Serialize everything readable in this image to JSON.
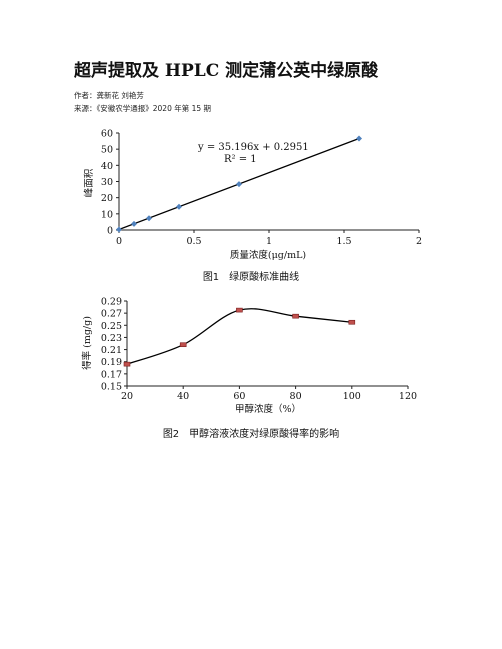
{
  "doc": {
    "title": "超声提取及 HPLC 测定蒲公英中绿原酸",
    "authors": "作者：龚新花 刘艳芳",
    "source": "来源：《安徽农学通报》2020 年第 15 期"
  },
  "figures": {
    "fig1": {
      "caption": "图1　绿原酸标准曲线",
      "equation": "y = 35.196x + 0.2951",
      "r2": "R² = 1",
      "xlabel": "质量浓度(μg/mL)",
      "ylabel": "峰面积"
    },
    "fig2": {
      "caption": "图2　甲醇溶液浓度对绿原酸得率的影响",
      "xlabel": "甲醇浓度（%）",
      "ylabel": "得率 (mg/g)"
    }
  },
  "chart_data": [
    {
      "type": "scatter",
      "title": "图1　绿原酸标准曲线",
      "xlabel": "质量浓度(μg/mL)",
      "ylabel": "峰面积",
      "xlim": [
        0,
        2
      ],
      "ylim": [
        0,
        60
      ],
      "xticks": [
        "0",
        "0.5",
        "1",
        "1.5",
        "2"
      ],
      "yticks": [
        "0",
        "10",
        "20",
        "30",
        "40",
        "50",
        "60"
      ],
      "trendline": {
        "slope": 35.196,
        "intercept": 0.2951,
        "label": "y = 35.196x + 0.2951",
        "r2": "R² = 1"
      },
      "x": [
        0,
        0.1,
        0.2,
        0.4,
        0.8,
        1.6
      ],
      "y": [
        0.3,
        3.8,
        7.3,
        14.4,
        28.4,
        56.6
      ],
      "marker_color": "#4f81bd",
      "line_color": "#000000"
    },
    {
      "type": "line",
      "title": "图2　甲醇溶液浓度对绿原酸得率的影响",
      "xlabel": "甲醇浓度（%）",
      "ylabel": "得率 (mg/g)",
      "xlim": [
        20,
        120
      ],
      "ylim": [
        0.15,
        0.29
      ],
      "xticks": [
        "20",
        "40",
        "60",
        "80",
        "100",
        "120"
      ],
      "yticks": [
        "0.15",
        "0.17",
        "0.19",
        "0.21",
        "0.23",
        "0.25",
        "0.27",
        "0.29"
      ],
      "x": [
        20,
        40,
        60,
        80,
        100
      ],
      "y": [
        0.186,
        0.218,
        0.275,
        0.265,
        0.255
      ],
      "smooth": true,
      "marker_color": "#c0504d",
      "line_color": "#000000"
    }
  ]
}
